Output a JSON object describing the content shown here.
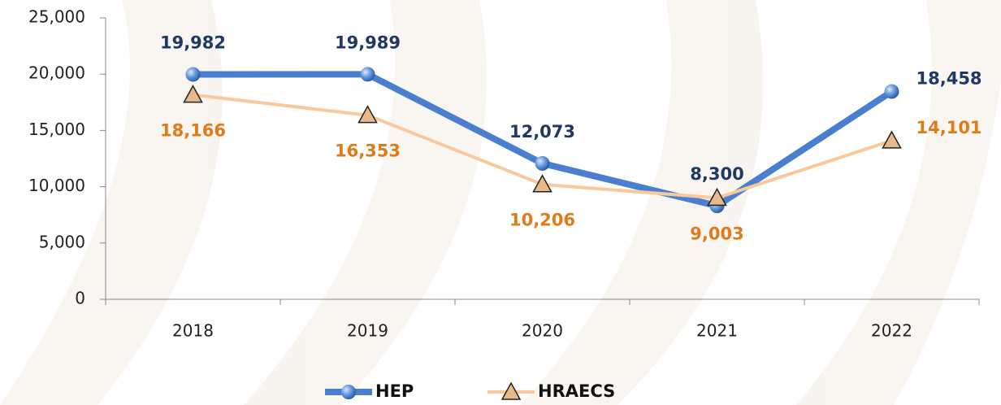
{
  "chart_data": {
    "type": "line",
    "categories": [
      "2018",
      "2019",
      "2020",
      "2021",
      "2022"
    ],
    "series": [
      {
        "name": "HEP",
        "color": "#4a7fd0",
        "label_color": "#1f3864",
        "values": [
          19982,
          19989,
          12073,
          8300,
          18458
        ],
        "value_labels": [
          "19,982",
          "19,989",
          "12,073",
          "8,300",
          "18,458"
        ]
      },
      {
        "name": "HRAECS",
        "color": "#f9c89b",
        "label_color": "#e07b1a",
        "values": [
          18166,
          16353,
          10206,
          9003,
          14101
        ],
        "value_labels": [
          "18,166",
          "16,353",
          "10,206",
          "9,003",
          "14,101"
        ]
      }
    ],
    "ylim": [
      0,
      25000
    ],
    "yticks": [
      0,
      {
        "value": 5000,
        "label": "5,000"
      },
      {
        "value": 10000,
        "label": "10,000"
      },
      {
        "value": 15000,
        "label": "15,000"
      },
      {
        "value": 20000,
        "label": "20,000"
      },
      {
        "value": 25000,
        "label": "25,000"
      }
    ],
    "legend": "bottom"
  }
}
